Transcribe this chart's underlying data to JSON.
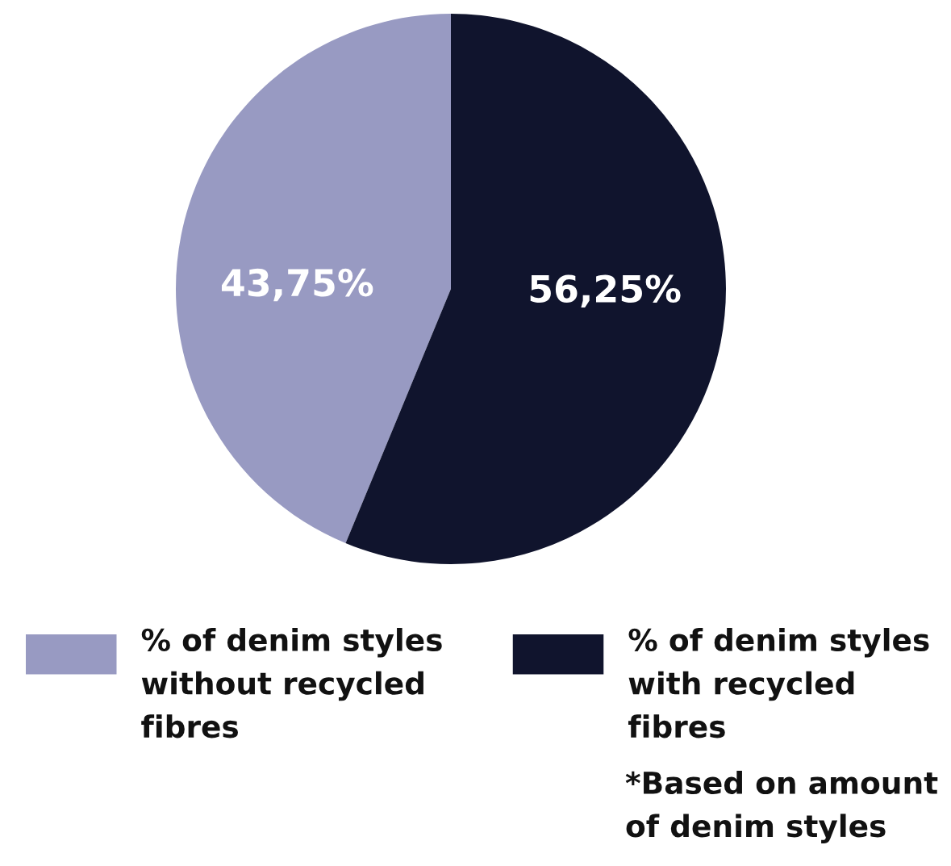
{
  "chart_data": {
    "type": "pie",
    "categories": [
      "% of denim styles\nwithout recycled\nfibres",
      "% of denim styles\nwith recycled\nfibres"
    ],
    "values": [
      43.75,
      56.25
    ],
    "colors": [
      "#989ac2",
      "#10142d"
    ],
    "value_labels": [
      "43,75%",
      "56,25%"
    ],
    "legend": "bottom",
    "annotations": [
      "*Based on amount\nof denim styles"
    ]
  }
}
